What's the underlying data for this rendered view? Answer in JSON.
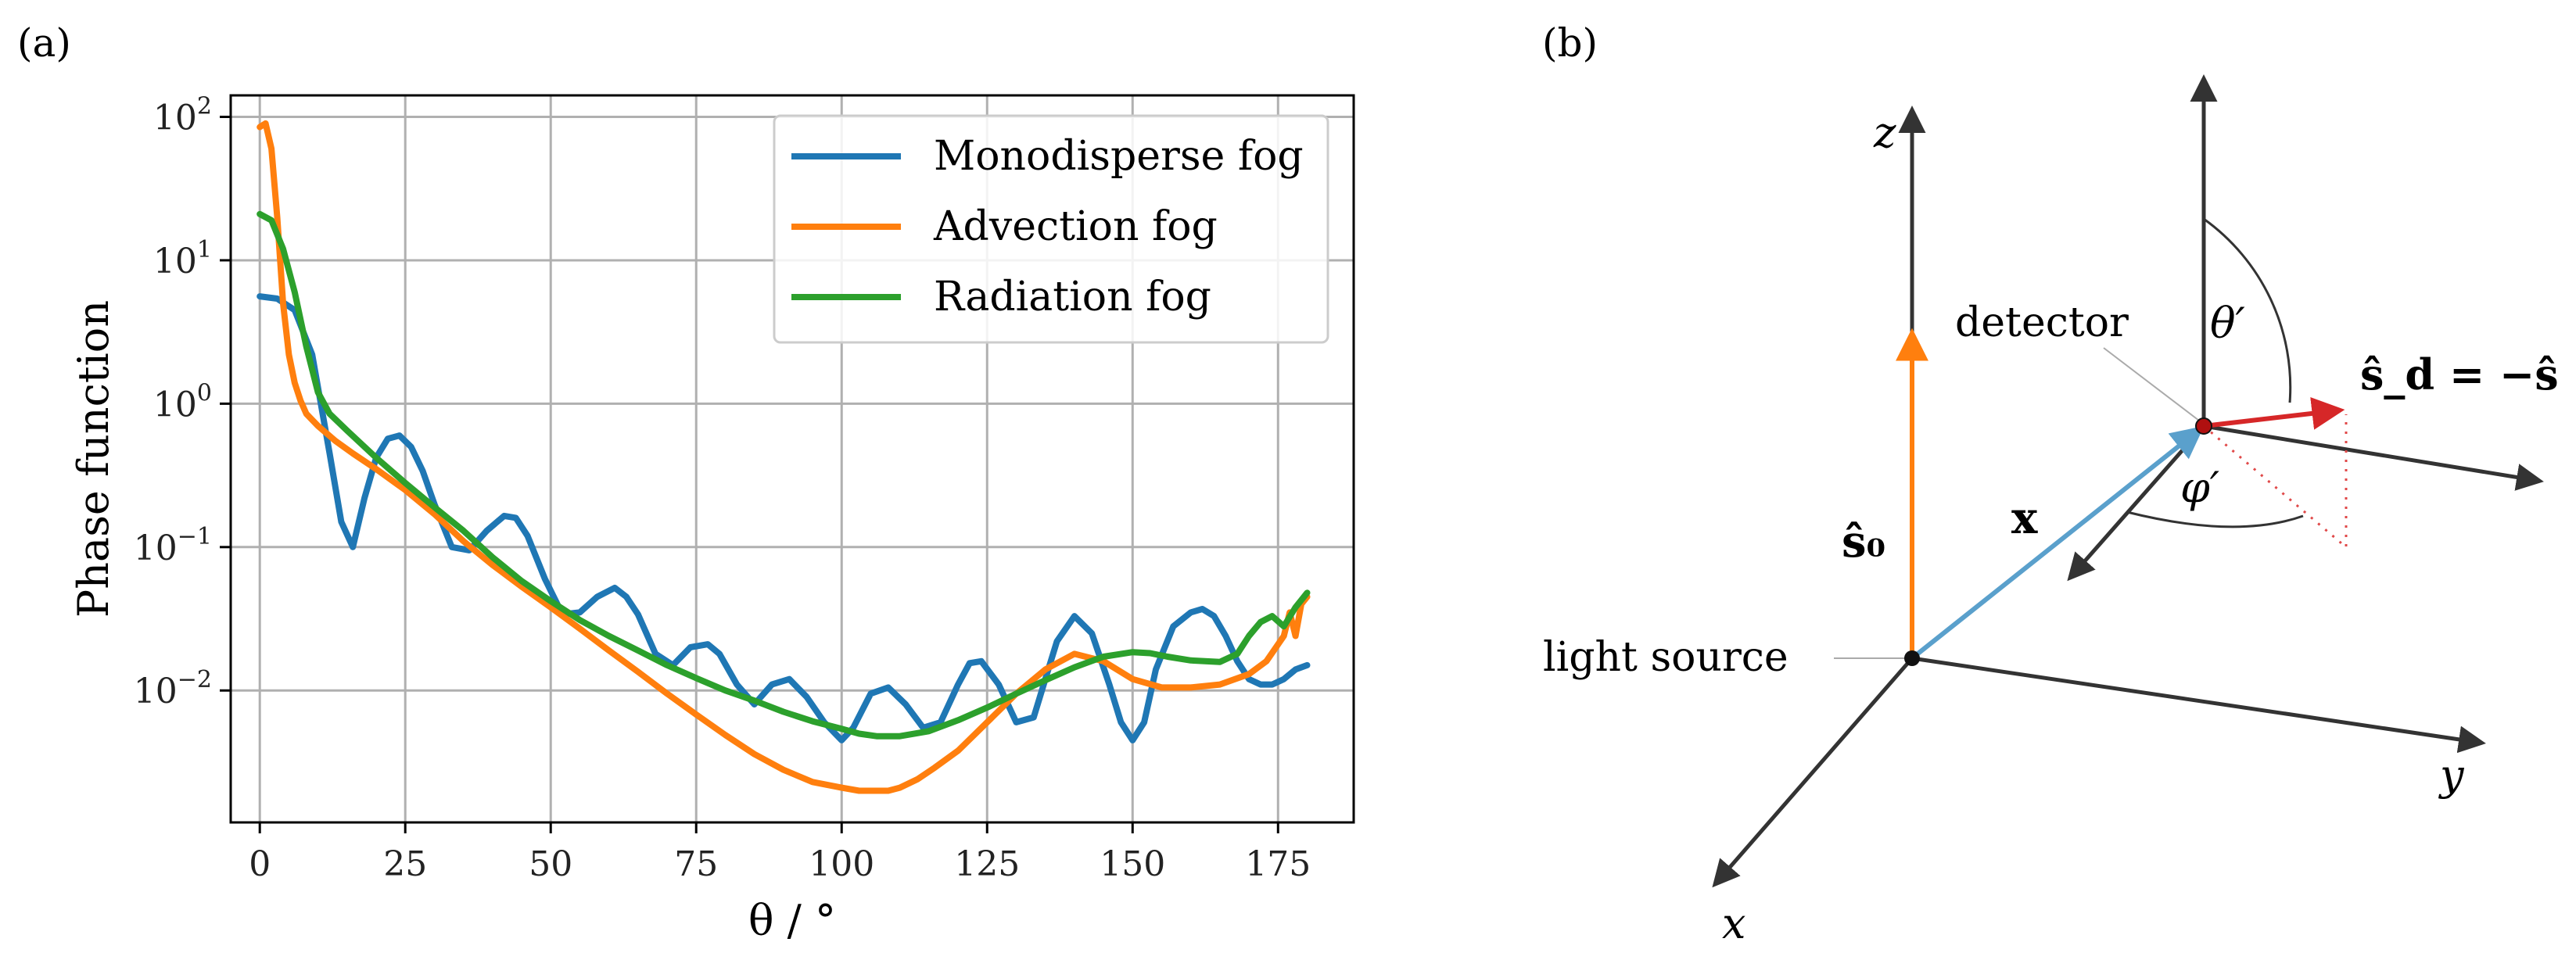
{
  "panels": {
    "a_label": "(a)",
    "b_label": "(b)"
  },
  "chart_data": {
    "type": "line",
    "title": "",
    "xlabel": "θ / °",
    "ylabel": "Phase function",
    "xlim": [
      -5,
      188
    ],
    "ylog": true,
    "ylim_log10": [
      -2.92,
      2.15
    ],
    "grid": true,
    "legend_position": "top-right",
    "x_ticks": [
      0,
      25,
      50,
      75,
      100,
      125,
      150,
      175
    ],
    "y_ticks": [
      {
        "value": 100,
        "base": "10",
        "exp": "2"
      },
      {
        "value": 10,
        "base": "10",
        "exp": "1"
      },
      {
        "value": 1,
        "base": "10",
        "exp": "0"
      },
      {
        "value": 0.1,
        "base": "10",
        "exp": "−1"
      },
      {
        "value": 0.01,
        "base": "10",
        "exp": "−2"
      }
    ],
    "series": [
      {
        "name": "Monodisperse fog",
        "color": "#1f77b4",
        "x": [
          0,
          3,
          6,
          9,
          12,
          14,
          16,
          18,
          20,
          22,
          24,
          26,
          28,
          30,
          33,
          36,
          39,
          42,
          44,
          46,
          49,
          52,
          55,
          58,
          61,
          63,
          65,
          68,
          71,
          74,
          77,
          79,
          82,
          85,
          88,
          91,
          94,
          97,
          100,
          102,
          105,
          108,
          111,
          114,
          117,
          120,
          122,
          124,
          127,
          130,
          133,
          135,
          137,
          140,
          143,
          146,
          148,
          150,
          152,
          154,
          157,
          160,
          162,
          164,
          166,
          168,
          170,
          172,
          174,
          176,
          178,
          180
        ],
        "y": [
          5.6,
          5.4,
          4.5,
          2.2,
          0.45,
          0.15,
          0.1,
          0.22,
          0.42,
          0.57,
          0.6,
          0.5,
          0.34,
          0.2,
          0.1,
          0.095,
          0.13,
          0.165,
          0.16,
          0.12,
          0.06,
          0.034,
          0.035,
          0.045,
          0.052,
          0.045,
          0.034,
          0.018,
          0.015,
          0.02,
          0.021,
          0.018,
          0.011,
          0.008,
          0.011,
          0.012,
          0.009,
          0.006,
          0.0045,
          0.0055,
          0.0095,
          0.0105,
          0.008,
          0.0055,
          0.006,
          0.011,
          0.0155,
          0.016,
          0.011,
          0.006,
          0.0065,
          0.012,
          0.022,
          0.033,
          0.025,
          0.011,
          0.006,
          0.0045,
          0.006,
          0.014,
          0.028,
          0.035,
          0.037,
          0.033,
          0.024,
          0.016,
          0.012,
          0.011,
          0.011,
          0.012,
          0.014,
          0.015
        ]
      },
      {
        "name": "Advection fog",
        "color": "#ff7f0e",
        "x": [
          0,
          1,
          2,
          3,
          4,
          5,
          6,
          7,
          8,
          10,
          13,
          16,
          20,
          25,
          30,
          35,
          40,
          45,
          50,
          55,
          60,
          65,
          70,
          75,
          80,
          85,
          90,
          95,
          100,
          103,
          106,
          108,
          110,
          113,
          116,
          120,
          125,
          130,
          135,
          140,
          145,
          150,
          155,
          160,
          165,
          170,
          173,
          176,
          177,
          178,
          179,
          180
        ],
        "y": [
          85,
          90,
          60,
          20,
          5,
          2.2,
          1.4,
          1.05,
          0.85,
          0.7,
          0.55,
          0.45,
          0.35,
          0.25,
          0.17,
          0.11,
          0.075,
          0.053,
          0.038,
          0.027,
          0.019,
          0.0135,
          0.0095,
          0.0068,
          0.0049,
          0.0036,
          0.0028,
          0.0023,
          0.0021,
          0.002,
          0.002,
          0.002,
          0.0021,
          0.0024,
          0.0029,
          0.0038,
          0.006,
          0.0095,
          0.014,
          0.018,
          0.016,
          0.012,
          0.0105,
          0.0105,
          0.011,
          0.013,
          0.016,
          0.024,
          0.035,
          0.024,
          0.04,
          0.045
        ]
      },
      {
        "name": "Radiation fog",
        "color": "#2ca02c",
        "x": [
          0,
          2,
          4,
          6,
          8,
          10,
          12,
          15,
          20,
          25,
          30,
          35,
          40,
          45,
          50,
          55,
          60,
          65,
          70,
          75,
          80,
          85,
          90,
          95,
          100,
          103,
          106,
          110,
          115,
          120,
          125,
          130,
          135,
          140,
          145,
          150,
          153,
          156,
          160,
          165,
          168,
          170,
          172,
          174,
          176,
          178,
          180
        ],
        "y": [
          21,
          19,
          12,
          6,
          2.5,
          1.2,
          0.85,
          0.65,
          0.42,
          0.28,
          0.19,
          0.13,
          0.085,
          0.058,
          0.042,
          0.031,
          0.024,
          0.019,
          0.015,
          0.0122,
          0.01,
          0.0085,
          0.0071,
          0.0061,
          0.0054,
          0.005,
          0.0048,
          0.0048,
          0.0052,
          0.0062,
          0.0076,
          0.0095,
          0.0118,
          0.0145,
          0.0172,
          0.0185,
          0.0182,
          0.0172,
          0.0162,
          0.0158,
          0.018,
          0.024,
          0.03,
          0.033,
          0.028,
          0.038,
          0.048
        ]
      }
    ]
  },
  "diagram": {
    "axis_z": "z",
    "axis_x": "x",
    "axis_y": "y",
    "detector_label": "detector",
    "light_source_label": "light source",
    "s0_label": "ŝ₀",
    "sd_label": "ŝ_d = −ŝ",
    "x_vector_label": "x",
    "theta_prime": "θ′",
    "phi_prime": "φ′",
    "colors": {
      "axis": "#333333",
      "source": "#ff7f0e",
      "x_vec": "#5aa0cc",
      "sd": "#d62728"
    }
  }
}
